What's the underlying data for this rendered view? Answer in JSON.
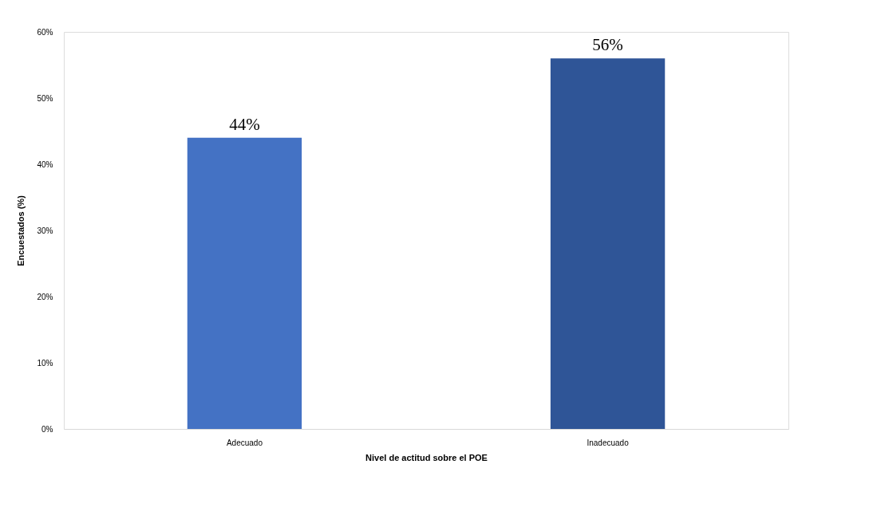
{
  "chart_data": {
    "type": "bar",
    "xlabel": "Nivel de actitud sobre el POE",
    "ylabel": "Encuestados (%)",
    "categories": [
      "Adecuado",
      "Inadecuado"
    ],
    "values": [
      44,
      56
    ],
    "colors": [
      "#4472c4",
      "#2f5597"
    ],
    "value_labels": [
      "44%",
      "56%"
    ],
    "ylim": [
      0,
      60
    ],
    "yticks": [
      {
        "value": 0,
        "label": "0%"
      },
      {
        "value": 10,
        "label": "10%"
      },
      {
        "value": 20,
        "label": "20%"
      },
      {
        "value": 30,
        "label": "30%"
      },
      {
        "value": 40,
        "label": "40%"
      },
      {
        "value": 50,
        "label": "50%"
      },
      {
        "value": 60,
        "label": "60%"
      }
    ],
    "grid": false
  }
}
